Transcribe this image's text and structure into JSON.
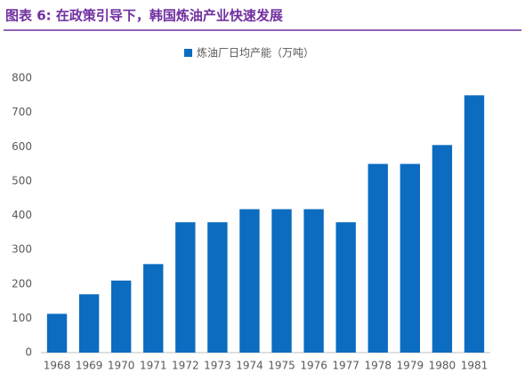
{
  "chart_data": {
    "type": "bar",
    "title": "图表 6: 在政策引导下，韩国炼油产业快速发展",
    "legend": "炼油厂日均产能（万吨）",
    "categories": [
      "1968",
      "1969",
      "1970",
      "1971",
      "1972",
      "1973",
      "1974",
      "1975",
      "1976",
      "1977",
      "1978",
      "1979",
      "1980",
      "1981"
    ],
    "values": [
      113,
      170,
      210,
      258,
      380,
      380,
      418,
      418,
      418,
      380,
      550,
      550,
      605,
      750
    ],
    "color": "#0b6cc0",
    "ylim": [
      0,
      800
    ],
    "yticks": [
      0,
      100,
      200,
      300,
      400,
      500,
      600,
      700,
      800
    ],
    "grid": false
  }
}
